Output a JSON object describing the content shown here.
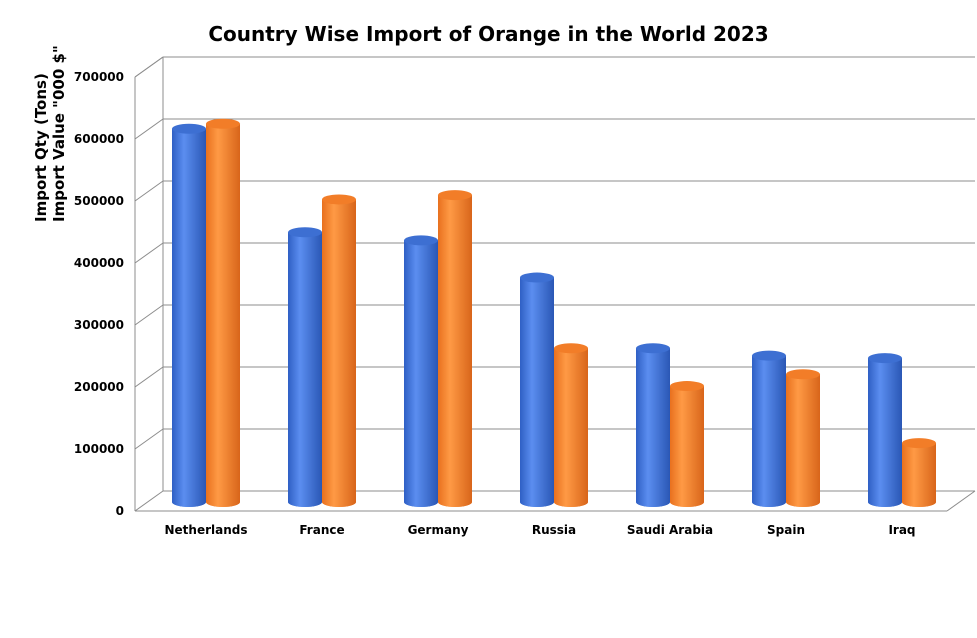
{
  "chart_data": {
    "type": "bar",
    "title": "Country Wise Import of Orange in the World 2023",
    "ylabel_lines": [
      "Import Qty (Tons)",
      "Import Value \"000 $\""
    ],
    "categories": [
      "Netherlands",
      "France",
      "Germany",
      "Russia",
      "Saudi Arabia",
      "Spain",
      "Iraq"
    ],
    "series": [
      {
        "values": [
          602000,
          435000,
          422000,
          362000,
          248000,
          236000,
          232000
        ],
        "color": "#4a7fdf"
      },
      {
        "values": [
          610000,
          488000,
          495000,
          248000,
          187000,
          206000,
          95000
        ],
        "color": "#fb8c36"
      }
    ],
    "ylim": [
      0,
      700000
    ],
    "yticks": [
      "0",
      "100000",
      "200000",
      "300000",
      "400000",
      "500000",
      "600000",
      "700000"
    ],
    "grid": true,
    "style": "3d-cylinder"
  }
}
